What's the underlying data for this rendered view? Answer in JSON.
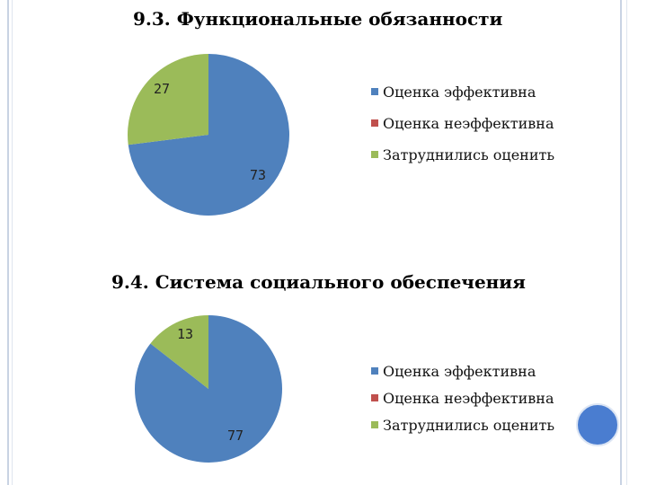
{
  "chart_data": [
    {
      "type": "pie",
      "title": "9.3. Функциональные обязанности",
      "categories": [
        "Оценка эффективна",
        "Оценка неэффективна",
        "Затруднились оценить"
      ],
      "values": [
        73,
        0,
        27
      ],
      "colors": [
        "#4f81bd",
        "#c0504d",
        "#9bbb59"
      ],
      "data_labels": [
        "73",
        "",
        "27"
      ],
      "legend": "right"
    },
    {
      "type": "pie",
      "title": "9.4. Система социального обеспечения",
      "categories": [
        "Оценка эффективна",
        "Оценка неэффективна",
        "Затруднились оценить"
      ],
      "values": [
        77,
        0,
        13
      ],
      "colors": [
        "#4f81bd",
        "#c0504d",
        "#9bbb59"
      ],
      "data_labels": [
        "77",
        "",
        "13"
      ],
      "legend": "right"
    }
  ]
}
